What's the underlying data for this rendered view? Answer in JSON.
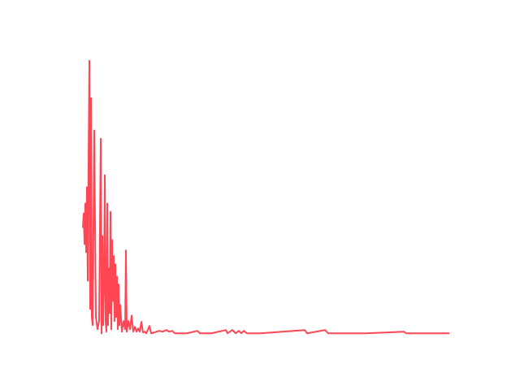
{
  "chart_data": {
    "type": "line",
    "color": "#ff4655",
    "x": [
      0,
      1,
      2,
      3,
      4,
      5,
      6,
      7,
      8,
      9,
      10,
      11,
      12,
      14,
      16,
      18,
      20,
      22,
      23,
      24,
      25,
      26,
      27,
      28,
      29,
      30,
      31,
      32,
      33,
      34,
      35,
      36,
      37,
      38,
      39,
      40,
      41,
      42,
      43,
      44,
      45,
      46,
      48,
      50,
      52,
      53,
      54,
      56,
      58,
      60,
      62,
      64,
      66,
      68,
      70,
      72,
      74,
      76,
      78,
      82,
      84,
      88,
      94,
      98,
      103,
      106,
      110,
      113,
      128,
      141,
      144,
      158,
      176,
      178,
      184,
      188,
      192,
      195,
      198,
      202,
      218,
      273,
      276,
      298,
      302,
      348,
      395,
      398,
      451
    ],
    "values": [
      38.7,
      44.0,
      32.7,
      47.6,
      29.8,
      53.6,
      19.3,
      62.5,
      100,
      8.9,
      86.3,
      6.0,
      3.0,
      74.4,
      6.0,
      1.5,
      4.5,
      71.4,
      0,
      35.7,
      3.0,
      17.9,
      58.0,
      4.5,
      0.6,
      47.6,
      3.0,
      23.8,
      7.4,
      44.6,
      1.5,
      34.2,
      11.9,
      28.3,
      4.5,
      25.3,
      6.0,
      20.8,
      1.5,
      17.9,
      3.0,
      10.4,
      0.6,
      4.5,
      1.5,
      30.4,
      0.6,
      4.5,
      1.5,
      6.5,
      0.6,
      2.4,
      0.6,
      1.8,
      0.6,
      4.2,
      0.3,
      0.6,
      0,
      2.7,
      0,
      0.3,
      0.9,
      0.6,
      1.2,
      0.6,
      0.9,
      0,
      0,
      0.9,
      0,
      0,
      1.2,
      0,
      1.2,
      0,
      0.9,
      0,
      0.9,
      0,
      0,
      1.2,
      0,
      1.2,
      0,
      0,
      0.6,
      0,
      0
    ],
    "xlim": [
      -22,
      474
    ],
    "ylim": [
      -5,
      105
    ]
  }
}
